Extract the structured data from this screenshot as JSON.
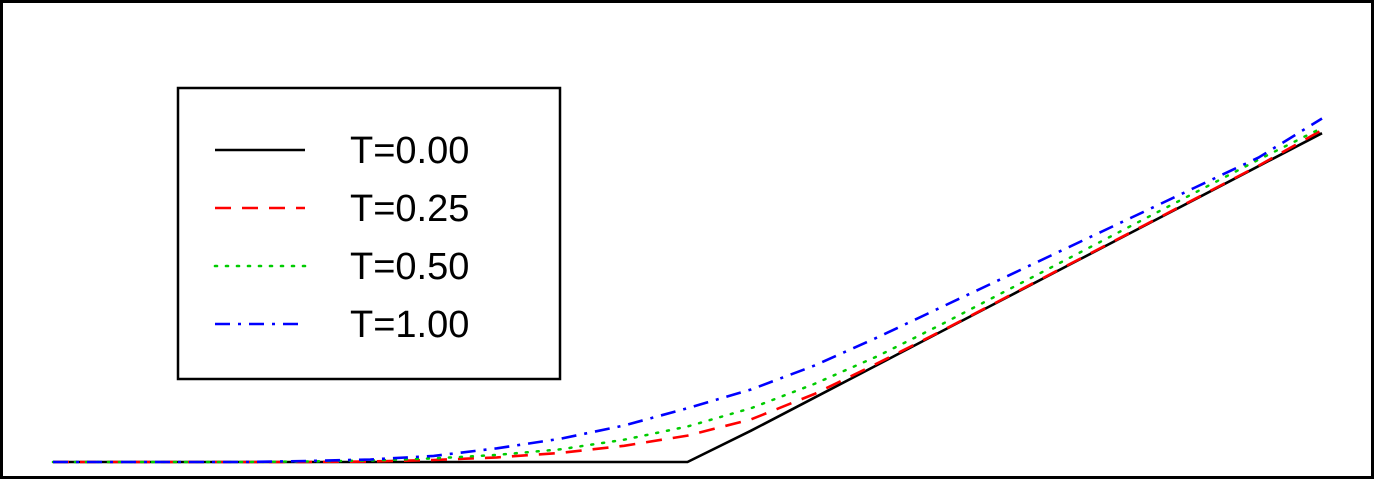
{
  "chart_data": {
    "type": "line",
    "title": "",
    "xlabel": "",
    "ylabel": "",
    "grid": false,
    "legend_position": "upper-left",
    "x_range": [
      0,
      1
    ],
    "y_range": [
      0,
      1
    ],
    "x": [
      0.0,
      0.05,
      0.1,
      0.15,
      0.2,
      0.25,
      0.3,
      0.35,
      0.4,
      0.45,
      0.5,
      0.55,
      0.6,
      0.65,
      0.7,
      0.75,
      0.8,
      0.85,
      0.9,
      0.95,
      1.0
    ],
    "series": [
      {
        "name": "T=0.00",
        "style": "solid",
        "color": "#000000",
        "values": [
          0,
          0,
          0,
          0,
          0,
          0,
          0,
          0,
          0,
          0,
          0,
          0.0755,
          0.1554,
          0.2352,
          0.3151,
          0.395,
          0.4748,
          0.5547,
          0.6345,
          0.7144,
          0.7942
        ]
      },
      {
        "name": "T=0.25",
        "style": "dashed",
        "color": "#ff0000",
        "values": [
          0,
          0,
          0,
          0,
          0,
          0.0012,
          0.0049,
          0.011,
          0.0221,
          0.0392,
          0.0637,
          0.1029,
          0.1642,
          0.2389,
          0.3162,
          0.3961,
          0.476,
          0.5559,
          0.6358,
          0.7157,
          0.8018
        ]
      },
      {
        "name": "T=0.50",
        "style": "dotted",
        "color": "#00cc00",
        "values": [
          0,
          0,
          0,
          0,
          0.0012,
          0.0037,
          0.0086,
          0.0172,
          0.0306,
          0.0539,
          0.0858,
          0.1299,
          0.1887,
          0.256,
          0.3321,
          0.4118,
          0.4914,
          0.5711,
          0.6507,
          0.7303,
          0.8069
        ]
      },
      {
        "name": "T=1.00",
        "style": "dashdot",
        "color": "#0000ff",
        "values": [
          0,
          0,
          0,
          0,
          0.0025,
          0.0061,
          0.0147,
          0.0331,
          0.0564,
          0.0882,
          0.1299,
          0.1752,
          0.2328,
          0.3015,
          0.3738,
          0.4461,
          0.5184,
          0.5907,
          0.663,
          0.7353,
          0.8297
        ]
      }
    ]
  }
}
